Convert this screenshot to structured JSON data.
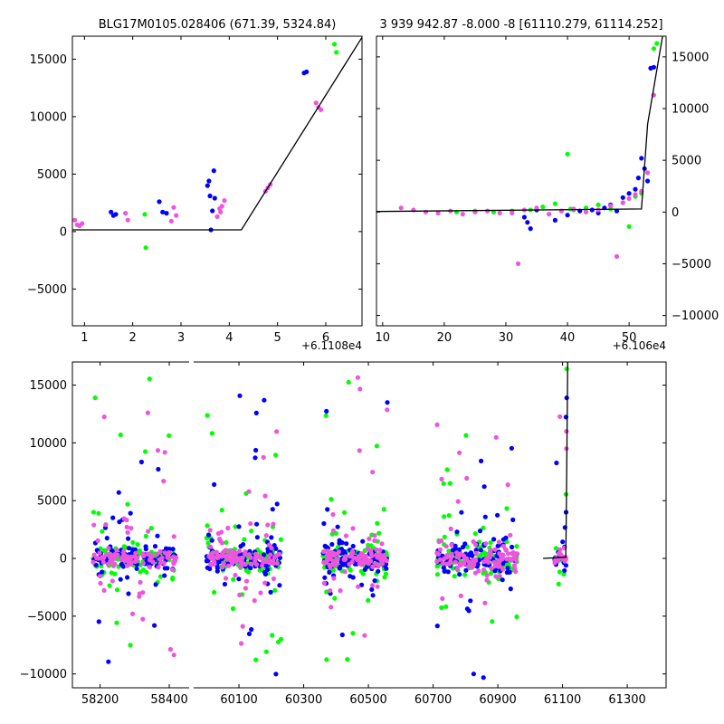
{
  "chart_data": [
    {
      "id": "top_left",
      "type": "scatter",
      "title": "BLG17M0105.028406 (671.39, 5324.84)",
      "xlabel": "",
      "ylabel": "",
      "xlim": [
        0.75,
        6.75
      ],
      "ylim": [
        -8200,
        17000
      ],
      "x_offset_label": "+6.1108e4",
      "x_ticks": [
        1,
        2,
        3,
        4,
        5,
        6
      ],
      "x_tick_labels": [
        "1",
        "2",
        "3",
        "4",
        "5",
        "6"
      ],
      "y_ticks": [
        -5000,
        0,
        5000,
        10000,
        15000
      ],
      "y_tick_labels": [
        "−5000",
        "0",
        "5000",
        "10000",
        "15000"
      ],
      "y_axis_side": "left",
      "grid": false,
      "model_line": {
        "x": [
          0.75,
          4.25,
          6.75
        ],
        "y": [
          150,
          150,
          16900
        ]
      },
      "series": [
        {
          "name": "green",
          "color": "#00ff00",
          "x": [
            2.25,
            2.27,
            6.18,
            6.22
          ],
          "y": [
            1500,
            -1400,
            16300,
            15600
          ]
        },
        {
          "name": "blue",
          "color": "#0000ff",
          "x": [
            1.55,
            1.6,
            1.65,
            2.55,
            2.62,
            2.7,
            3.55,
            3.58,
            3.6,
            3.62,
            3.65,
            3.68,
            3.7,
            5.55,
            5.6
          ],
          "y": [
            1700,
            1400,
            1500,
            2600,
            1700,
            1600,
            4000,
            4400,
            3100,
            150,
            1800,
            5300,
            2900,
            13800,
            13900
          ]
        },
        {
          "name": "magenta",
          "color": "#ee55dd",
          "x": [
            0.8,
            0.85,
            0.9,
            0.95,
            1.85,
            1.9,
            2.8,
            2.85,
            2.9,
            3.75,
            3.8,
            3.82,
            3.85,
            3.9,
            4.75,
            4.8,
            4.85,
            5.8,
            5.85,
            5.9
          ],
          "y": [
            1000,
            600,
            500,
            700,
            1600,
            1000,
            900,
            2100,
            1400,
            1300,
            2000,
            1700,
            2200,
            2700,
            3500,
            3800,
            4100,
            11200,
            10800,
            10600
          ]
        }
      ]
    },
    {
      "id": "top_right",
      "type": "scatter",
      "title": "3 939 942.87 -8.000 -8 [61110.279, 61114.252]",
      "xlabel": "",
      "ylabel": "",
      "xlim": [
        9,
        56
      ],
      "ylim": [
        -11000,
        17000
      ],
      "x_offset_label": "+6.106e4",
      "x_ticks": [
        10,
        20,
        30,
        40,
        50
      ],
      "x_tick_labels": [
        "10",
        "20",
        "30",
        "40",
        "50"
      ],
      "y_ticks": [
        -10000,
        -5000,
        0,
        5000,
        10000,
        15000
      ],
      "y_tick_labels": [
        "−10000",
        "−5000",
        "0",
        "5000",
        "10000",
        "15000"
      ],
      "y_axis_side": "right",
      "grid": false,
      "model_line": {
        "x": [
          9,
          52,
          53,
          56
        ],
        "y": [
          50,
          300,
          8500,
          19000
        ]
      },
      "series": [
        {
          "name": "green",
          "color": "#00ff00",
          "x": [
            22,
            25,
            28,
            31,
            34,
            36,
            38,
            40,
            40.5,
            41,
            43,
            45,
            47,
            49,
            50,
            51,
            52,
            54,
            54.5
          ],
          "y": [
            0,
            100,
            0,
            100,
            200,
            500,
            800,
            5600,
            300,
            200,
            400,
            700,
            300,
            900,
            -1400,
            1500,
            1800,
            15800,
            16300
          ]
        },
        {
          "name": "blue",
          "color": "#0000ff",
          "x": [
            33,
            33.5,
            34,
            35,
            38,
            40,
            42,
            44,
            45,
            46,
            47,
            48,
            49,
            50,
            51,
            51.5,
            52,
            52.5,
            53,
            53.5,
            54
          ],
          "y": [
            -500,
            -1000,
            -1600,
            200,
            -800,
            -300,
            100,
            200,
            -100,
            400,
            700,
            100,
            1400,
            1800,
            2200,
            3300,
            5200,
            4200,
            3000,
            13900,
            14000
          ]
        },
        {
          "name": "magenta",
          "color": "#ee55dd",
          "x": [
            13,
            15,
            17,
            19,
            21,
            23,
            25,
            27,
            29,
            31,
            32,
            33,
            35,
            37,
            39,
            41,
            43,
            45,
            47,
            48,
            49,
            50,
            51,
            52,
            53,
            54
          ],
          "y": [
            400,
            200,
            0,
            -100,
            100,
            -200,
            0,
            100,
            -100,
            -100,
            -5000,
            200,
            400,
            -200,
            100,
            300,
            0,
            200,
            600,
            -4300,
            900,
            1300,
            1700,
            2000,
            3800,
            11300
          ]
        }
      ]
    },
    {
      "id": "bottom",
      "type": "scatter",
      "title": "",
      "xlabel": "",
      "ylabel": "",
      "broken_axis": true,
      "segments": [
        {
          "xlim": [
            58120,
            58460
          ],
          "x_ticks": [
            58200,
            58400
          ],
          "x_tick_labels": [
            "58200",
            "58400"
          ]
        },
        {
          "xlim": [
            59960,
            61420
          ],
          "x_ticks": [
            60100,
            60300,
            60500,
            60700,
            60900,
            61100,
            61300
          ],
          "x_tick_labels": [
            "60100",
            "60300",
            "60500",
            "60700",
            "60900",
            "61100",
            "61300"
          ]
        }
      ],
      "ylim": [
        -11200,
        17000
      ],
      "y_ticks": [
        -10000,
        -5000,
        0,
        5000,
        10000,
        15000
      ],
      "y_tick_labels": [
        "−10000",
        "−5000",
        "0",
        "5000",
        "10000",
        "15000"
      ],
      "y_axis_side": "left",
      "grid": false,
      "model_line": {
        "x": [
          61040,
          61110,
          61112,
          61116
        ],
        "y": [
          0,
          100,
          5000,
          17000
        ]
      },
      "clusters": [
        {
          "x_range": [
            58180,
            58420
          ],
          "y_spread": 500,
          "outlier_min": -10900,
          "outlier_max": 16200
        },
        {
          "x_range": [
            60000,
            60230
          ],
          "y_spread": 550,
          "outlier_min": -10900,
          "outlier_max": 15500
        },
        {
          "x_range": [
            60360,
            60560
          ],
          "y_spread": 550,
          "outlier_min": -9300,
          "outlier_max": 16100
        },
        {
          "x_range": [
            60710,
            60960
          ],
          "y_spread": 650,
          "outlier_min": -11200,
          "outlier_max": 12500
        },
        {
          "x_range": [
            61075,
            61112
          ],
          "y_spread": 300,
          "outlier_min": -5400,
          "outlier_max": 16400
        }
      ],
      "series": [
        {
          "name": "green",
          "color": "#00ff00"
        },
        {
          "name": "blue",
          "color": "#0000ff"
        },
        {
          "name": "magenta",
          "color": "#ee55dd"
        }
      ]
    }
  ]
}
